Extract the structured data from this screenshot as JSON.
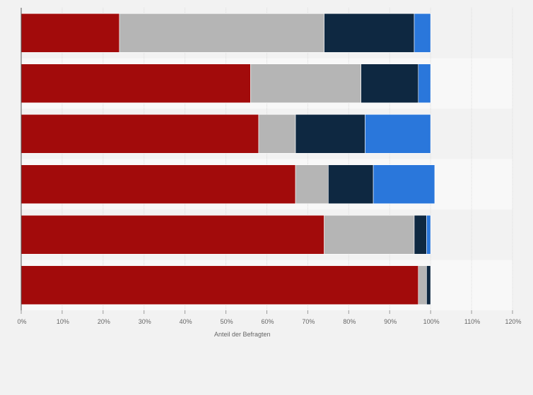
{
  "chart_data": {
    "type": "bar",
    "orientation": "horizontal",
    "stacked": true,
    "categories": [
      "",
      "",
      "",
      "",
      "",
      ""
    ],
    "series": [
      {
        "color": "#a20b0b",
        "values": [
          24,
          56,
          58,
          67,
          74,
          97
        ]
      },
      {
        "color": "#b5b5b5",
        "values": [
          50,
          27,
          9,
          8,
          22,
          2
        ]
      },
      {
        "color": "#0e2841",
        "values": [
          22,
          14,
          17,
          11,
          3,
          1
        ]
      },
      {
        "color": "#2a77db",
        "values": [
          4,
          3,
          16,
          15,
          1,
          0
        ]
      }
    ],
    "xlabel": "Anteil der Befragten",
    "xlim": [
      0,
      120
    ],
    "ticks": [
      "0%",
      "10%",
      "20%",
      "30%",
      "40%",
      "50%",
      "60%",
      "70%",
      "80%",
      "90%",
      "100%",
      "110%",
      "120%"
    ],
    "tick_values": [
      0,
      10,
      20,
      30,
      40,
      50,
      60,
      70,
      80,
      90,
      100,
      110,
      120
    ],
    "grid": true,
    "legend": "none"
  }
}
